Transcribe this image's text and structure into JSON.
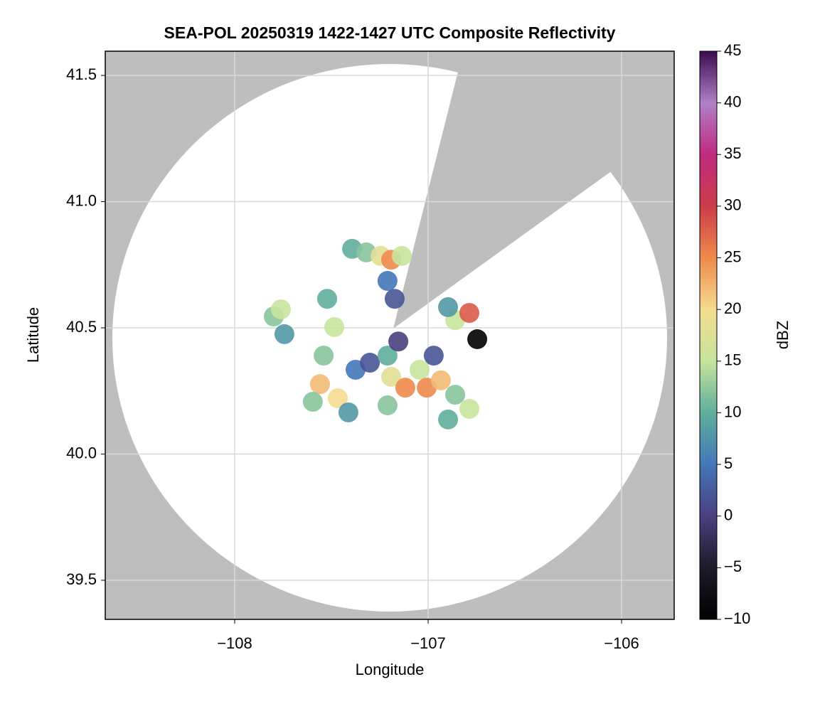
{
  "chart_data": {
    "type": "scatter",
    "title": "SEA-POL 20250319 1422-1427 UTC Composite Reflectivity",
    "x_label": "Longitude",
    "y_label": "Latitude",
    "colorbar_label": "dBZ",
    "xlim": [
      -108.669,
      -105.728
    ],
    "ylim": [
      39.345,
      41.596
    ],
    "xticks": [
      {
        "value": -108,
        "label": "−108"
      },
      {
        "value": -107,
        "label": "−107"
      },
      {
        "value": -106,
        "label": "−106"
      }
    ],
    "yticks": [
      39.5,
      {
        "value": 40,
        "label": "40.0"
      },
      40.5,
      {
        "value": 41,
        "label": "41.0"
      },
      41.5
    ],
    "clim": [
      -10,
      45
    ],
    "cticks": [
      {
        "value": -10,
        "label": "−10"
      },
      {
        "value": -5,
        "label": "−5"
      },
      0,
      5,
      10,
      15,
      20,
      25,
      30,
      35,
      40,
      45
    ],
    "colormap": [
      "#000000",
      "#1e1a28",
      "#4a3f80",
      "#4477b8",
      "#5fae9c",
      "#c6e49c",
      "#f4dc90",
      "#ef8a4c",
      "#cc3b48",
      "#c02a80",
      "#b080c8",
      "#3c0a4e"
    ],
    "grid": true,
    "x": [
      -107.393,
      -107.32,
      -107.246,
      -107.191,
      -107.136,
      -107.21,
      -107.173,
      -107.798,
      -107.743,
      -107.761,
      -107.522,
      -107.485,
      -107.54,
      -107.559,
      -107.467,
      -107.596,
      -107.412,
      -107.375,
      -107.301,
      -107.21,
      -107.191,
      -107.21,
      -107.118,
      -107.154,
      -107.044,
      -107.007,
      -106.934,
      -106.86,
      -106.787,
      -106.897,
      -106.971,
      -106.86,
      -106.787,
      -106.897,
      -106.746
    ],
    "y": [
      40.813,
      40.799,
      40.785,
      40.77,
      40.785,
      40.686,
      40.615,
      40.545,
      40.475,
      40.573,
      40.615,
      40.503,
      40.39,
      40.277,
      40.221,
      40.207,
      40.165,
      40.334,
      40.362,
      40.39,
      40.306,
      40.193,
      40.263,
      40.446,
      40.334,
      40.263,
      40.292,
      40.235,
      40.179,
      40.137,
      40.39,
      40.531,
      40.559,
      40.582,
      40.455
    ],
    "values": [
      10,
      12,
      18,
      25,
      15,
      5,
      2,
      12,
      8,
      15,
      10,
      15,
      12,
      22,
      20,
      12,
      8,
      5,
      2,
      10,
      18,
      12,
      25,
      0,
      15,
      25,
      22,
      12,
      15,
      10,
      2,
      15,
      28,
      8,
      -10
    ]
  }
}
